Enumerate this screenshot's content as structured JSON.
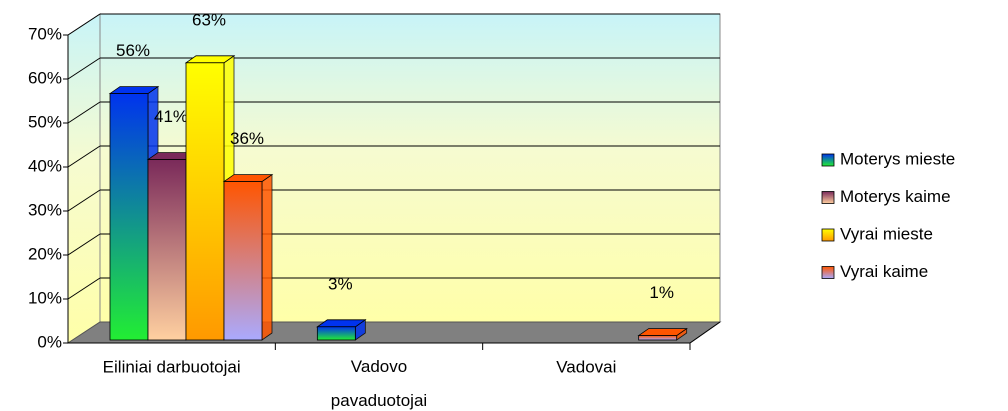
{
  "chart_data": {
    "type": "bar3d",
    "categories": [
      "Eiliniai darbuotojai",
      "Vadovo pavaduotojai",
      "Vadovai"
    ],
    "series": [
      {
        "name": "Moterys mieste",
        "gradient": [
          "#0033ee",
          "#22ee33"
        ],
        "values": [
          56,
          3,
          null
        ],
        "value_labels": [
          "56%",
          "3%",
          null
        ]
      },
      {
        "name": "Moterys kaime",
        "gradient": [
          "#7a2a5a",
          "#ffd0a0"
        ],
        "values": [
          41,
          null,
          null
        ],
        "value_labels": [
          "41%",
          null,
          null
        ]
      },
      {
        "name": "Vyrai mieste",
        "gradient": [
          "#ffff00",
          "#ff9900"
        ],
        "values": [
          63,
          null,
          null
        ],
        "value_labels": [
          "63%",
          null,
          null
        ]
      },
      {
        "name": "Vyrai kaime",
        "gradient": [
          "#ff5500",
          "#aaaaff"
        ],
        "values": [
          36,
          null,
          1
        ],
        "value_labels": [
          "36%",
          null,
          "1%"
        ]
      }
    ],
    "ylim": [
      0,
      70
    ],
    "yticks": [
      {
        "value": 0,
        "label": "0%"
      },
      {
        "value": 10,
        "label": "10%"
      },
      {
        "value": 20,
        "label": "20%"
      },
      {
        "value": 30,
        "label": "30%"
      },
      {
        "value": 40,
        "label": "40%"
      },
      {
        "value": 50,
        "label": "50%"
      },
      {
        "value": 60,
        "label": "60%"
      },
      {
        "value": 70,
        "label": "70%"
      }
    ],
    "grid": true,
    "legend": "right"
  }
}
